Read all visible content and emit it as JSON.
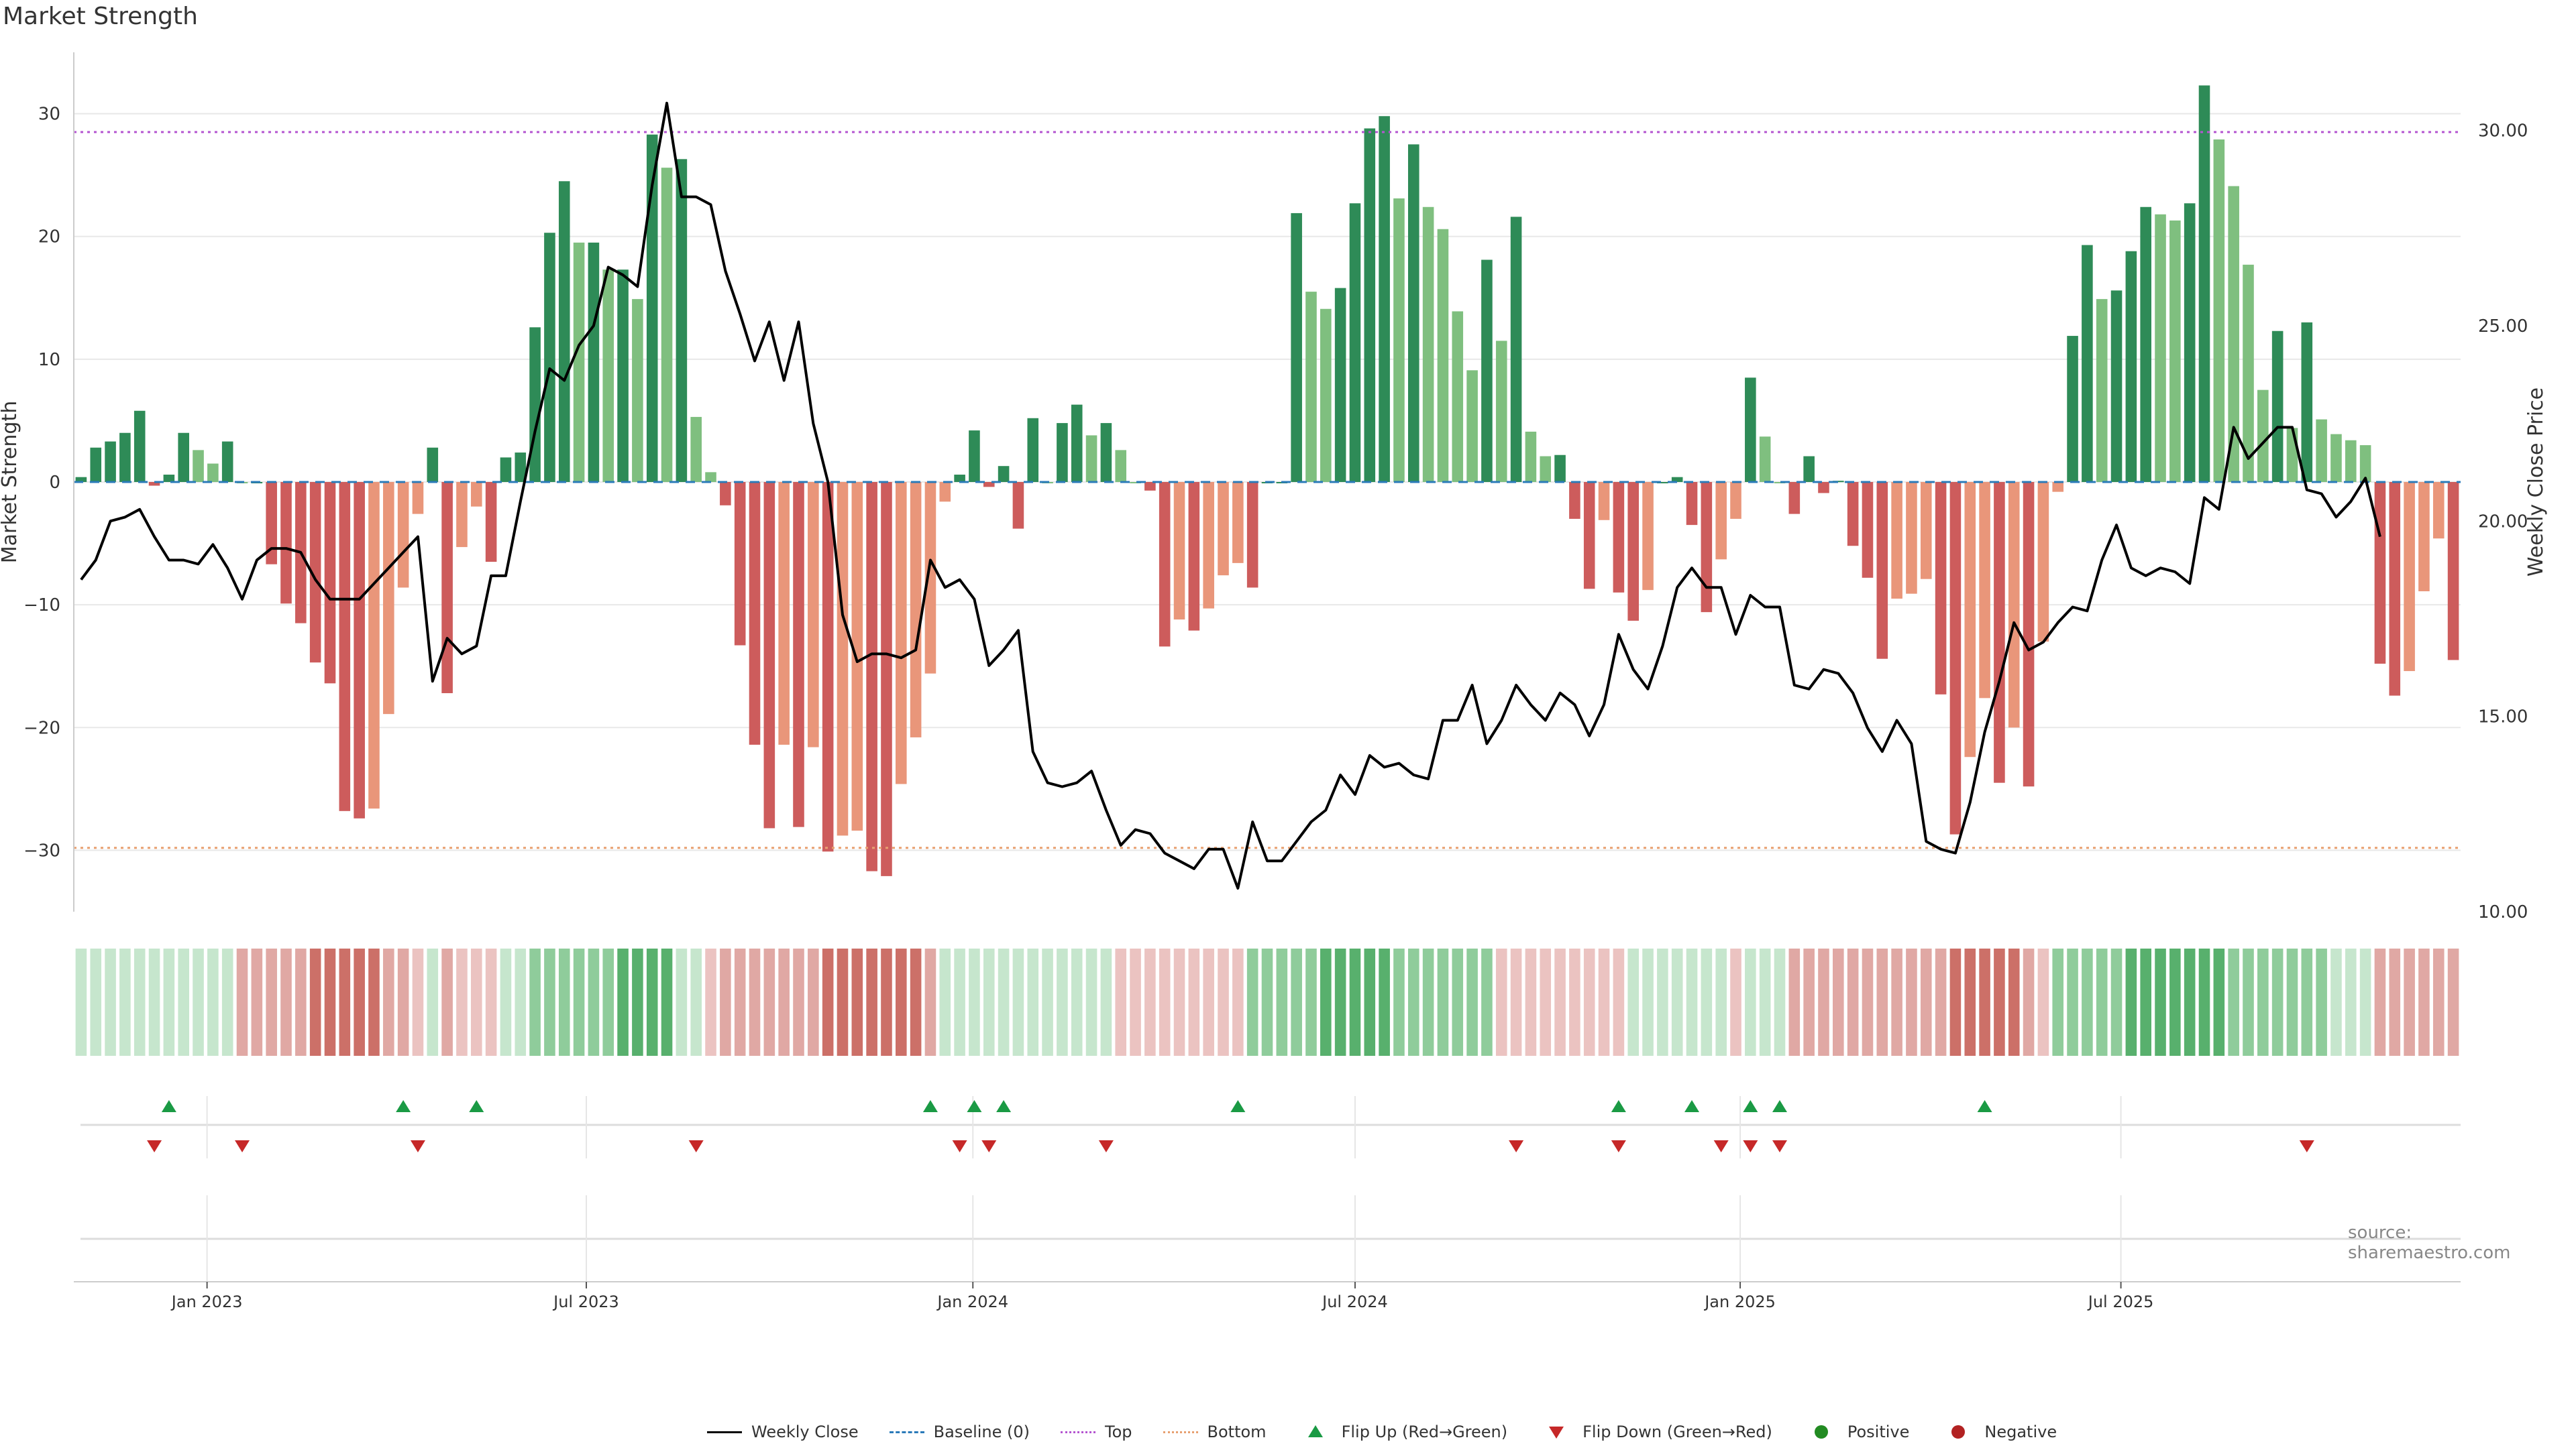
{
  "title": "Market Strength",
  "source": "source: sharemaestro.com",
  "colors": {
    "green_dark": "#2e8b57",
    "green_light": "#7fbf7f",
    "red_dark": "#cd5c5c",
    "red_light": "#e9967a",
    "price_line": "#000000",
    "top_line": "#b455d0",
    "bottom_line": "#e8a070",
    "flip_up": "#1a9a44",
    "flip_down": "#c62828"
  },
  "chart_data": {
    "type": "bar",
    "y_left_label": "Market Strength",
    "y_right_label": "Weekly Close Price",
    "y_left_ticks": [
      "30",
      "20",
      "10",
      "0",
      "−10",
      "−20",
      "−30"
    ],
    "y_left_range": [
      -35,
      35
    ],
    "y_right_ticks": [
      "30.00",
      "25.00",
      "20.00",
      "15.00",
      "10.00"
    ],
    "y_right_range": [
      10,
      32
    ],
    "x_ticks": [
      "Jan 2023",
      "Jul 2023",
      "Jan 2024",
      "Jul 2024",
      "Jan 2025",
      "Jul 2025"
    ],
    "x_tick_week_index": [
      8.6,
      34.5,
      60.9,
      87,
      113.3,
      139.3
    ],
    "top_level": 28.5,
    "bottom_level": -29.8,
    "strength": [
      0.4,
      2.8,
      3.3,
      4.0,
      5.8,
      -0.3,
      0.6,
      4.0,
      2.6,
      1.5,
      3.3,
      0,
      0,
      -6.7,
      -9.9,
      -11.5,
      -14.7,
      -16.4,
      -26.8,
      -27.4,
      -26.6,
      -18.9,
      -8.6,
      -2.6,
      2.8,
      -17.2,
      -5.3,
      -2.0,
      -6.5,
      2.0,
      2.4,
      12.6,
      20.3,
      24.5,
      19.5,
      19.5,
      17.3,
      17.3,
      14.9,
      28.3,
      25.6,
      26.3,
      5.3,
      0.8,
      -1.9,
      -13.3,
      -21.4,
      -28.2,
      -21.4,
      -28.1,
      -21.6,
      -30.1,
      -28.8,
      -28.4,
      -31.7,
      -32.1,
      -24.6,
      -20.8,
      -15.6,
      -1.6,
      0.6,
      4.2,
      -0.4,
      1.3,
      -3.8,
      5.2,
      0,
      4.8,
      6.3,
      3.8,
      4.8,
      2.6,
      0,
      -0.7,
      -13.4,
      -11.2,
      -12.1,
      -10.3,
      -7.6,
      -6.6,
      -8.6,
      0,
      0,
      21.9,
      15.5,
      14.1,
      15.8,
      22.7,
      28.8,
      29.8,
      23.1,
      27.5,
      22.4,
      20.6,
      13.9,
      9.1,
      18.1,
      11.5,
      21.6,
      4.1,
      2.1,
      2.2,
      -3.0,
      -8.7,
      -3.1,
      -9.0,
      -11.3,
      -8.8,
      0,
      0.4,
      -3.5,
      -10.6,
      -6.3,
      -3.0,
      8.5,
      3.7,
      0,
      -2.6,
      2.1,
      -0.9,
      0.1,
      -5.2,
      -7.8,
      -14.4,
      -9.5,
      -9.1,
      -7.9,
      -17.3,
      -28.7,
      -22.4,
      -17.6,
      -24.5,
      -20.0,
      -24.8,
      -13.0,
      -0.8,
      11.9,
      19.3,
      14.9,
      15.6,
      18.8,
      22.4,
      21.8,
      21.3,
      22.7,
      32.3,
      27.9,
      24.1,
      17.7,
      7.5,
      12.3,
      4.4,
      13.0,
      5.1,
      3.9,
      3.4,
      3.0,
      -14.8,
      -17.4,
      -15.4,
      -8.9,
      -4.6,
      -14.5
    ],
    "weekly_close": [
      18.5,
      19.0,
      20.0,
      20.1,
      20.3,
      19.6,
      19.0,
      19.0,
      18.9,
      19.4,
      18.8,
      18.0,
      19.0,
      19.3,
      19.3,
      19.2,
      18.5,
      18.0,
      18.0,
      18.0,
      18.4,
      18.8,
      19.2,
      19.6,
      15.9,
      17.0,
      16.6,
      16.8,
      18.6,
      18.6,
      20.5,
      22.3,
      23.9,
      23.6,
      24.5,
      25.0,
      26.5,
      26.3,
      26.0,
      28.6,
      30.7,
      28.3,
      28.3,
      28.1,
      26.4,
      25.3,
      24.1,
      25.1,
      23.6,
      25.1,
      22.5,
      21.0,
      17.6,
      16.4,
      16.6,
      16.6,
      16.5,
      16.7,
      19.0,
      18.3,
      18.5,
      18.0,
      16.3,
      16.7,
      17.2,
      14.1,
      13.3,
      13.2,
      13.3,
      13.6,
      12.6,
      11.7,
      12.1,
      12.0,
      11.5,
      11.3,
      11.1,
      11.6,
      11.6,
      10.6,
      12.3,
      11.3,
      11.3,
      11.8,
      12.3,
      12.6,
      13.5,
      13.0,
      14.0,
      13.7,
      13.8,
      13.5,
      13.4,
      14.9,
      14.9,
      15.8,
      14.3,
      14.9,
      15.8,
      15.3,
      14.9,
      15.6,
      15.3,
      14.5,
      15.3,
      17.1,
      16.2,
      15.7,
      16.8,
      18.3,
      18.8,
      18.3,
      18.3,
      17.1,
      18.1,
      17.8,
      17.8,
      15.8,
      15.7,
      16.2,
      16.1,
      15.6,
      14.7,
      14.1,
      14.9,
      14.3,
      11.8,
      11.6,
      11.5,
      12.8,
      14.6,
      15.9,
      17.4,
      16.7,
      16.9,
      17.4,
      17.8,
      17.7,
      19.0,
      19.9,
      18.8,
      18.6,
      18.8,
      18.7,
      18.4,
      20.6,
      20.3,
      22.4,
      21.6,
      22.0,
      22.4,
      22.4,
      20.8,
      20.7,
      20.1,
      20.5,
      21.1,
      19.6
    ],
    "heat_strength_class": [
      1,
      1,
      1,
      1,
      1,
      1,
      1,
      1,
      1,
      1,
      1,
      -2,
      -2,
      -2,
      -2,
      -2,
      -3,
      -3,
      -3,
      -3,
      -3,
      -2,
      -2,
      -1,
      1,
      -2,
      -1,
      -1,
      -1,
      1,
      1,
      2,
      2,
      2,
      2,
      2,
      2,
      3,
      3,
      3,
      3,
      1,
      1,
      -1,
      -2,
      -2,
      -2,
      -2,
      -2,
      -2,
      -2,
      -3,
      -3,
      -3,
      -3,
      -3,
      -3,
      -3,
      -2,
      1,
      1,
      1,
      1,
      1,
      1,
      1,
      1,
      1,
      1,
      1,
      1,
      -1,
      -1,
      -1,
      -1,
      -1,
      -1,
      -1,
      -1,
      -1,
      2,
      2,
      2,
      2,
      2,
      3,
      3,
      3,
      3,
      3,
      2,
      2,
      2,
      2,
      2,
      2,
      2,
      -1,
      -1,
      -1,
      -1,
      -1,
      -1,
      -1,
      -1,
      -1,
      1,
      1,
      1,
      1,
      1,
      1,
      1,
      -1,
      1,
      1,
      1,
      -2,
      -2,
      -2,
      -2,
      -2,
      -2,
      -2,
      -2,
      -2,
      -2,
      -2,
      -3,
      -3,
      -3,
      -3,
      -3,
      -2,
      -1,
      2,
      2,
      2,
      2,
      2,
      3,
      3,
      3,
      3,
      3,
      3,
      3,
      2,
      2,
      2,
      2,
      2,
      2,
      2,
      1,
      1,
      1,
      -2,
      -2,
      -2,
      -2,
      -2,
      -2
    ],
    "flips_up": [
      6,
      22,
      27,
      58,
      61,
      63,
      79,
      105,
      110,
      114,
      116,
      130
    ],
    "flips_down": [
      5,
      11,
      23,
      42,
      60,
      62,
      70,
      98,
      105,
      112,
      114,
      116,
      152
    ],
    "legend": [
      {
        "label": "Weekly Close",
        "sym": "line"
      },
      {
        "label": "Baseline (0)",
        "sym": "dash"
      },
      {
        "label": "Top",
        "sym": "dot-top"
      },
      {
        "label": "Bottom",
        "sym": "dot-bottom"
      },
      {
        "label": "Flip Up (Red→Green)",
        "sym": "tri-up"
      },
      {
        "label": "Flip Down (Green→Red)",
        "sym": "tri-down"
      },
      {
        "label": "Positive",
        "sym": "dot-pos"
      },
      {
        "label": "Negative",
        "sym": "dot-neg"
      }
    ]
  }
}
